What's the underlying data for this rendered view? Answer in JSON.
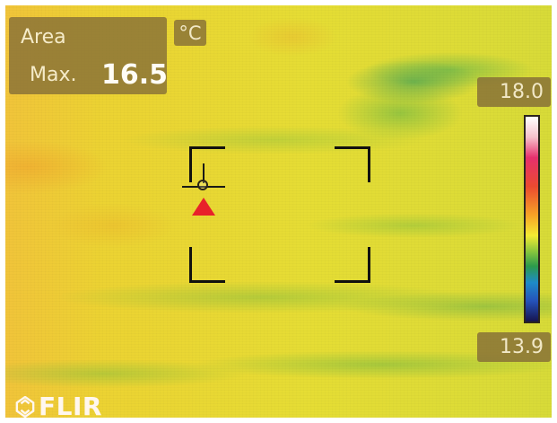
{
  "thermal_view": {
    "area_label": "Area",
    "max_label": "Max.",
    "max_value": "16.5",
    "unit": "°C",
    "scale_max": "18.0",
    "scale_min": "13.9",
    "brand": "FLIR",
    "icons": {
      "crosshair": "spot-meter-icon",
      "measurement_box": "area-box-icon",
      "brand_logo": "flir-logo-icon"
    },
    "colors": {
      "overlay": "#877037",
      "overlay_text": "#f5ebc9",
      "marker": "#e8222a"
    }
  }
}
